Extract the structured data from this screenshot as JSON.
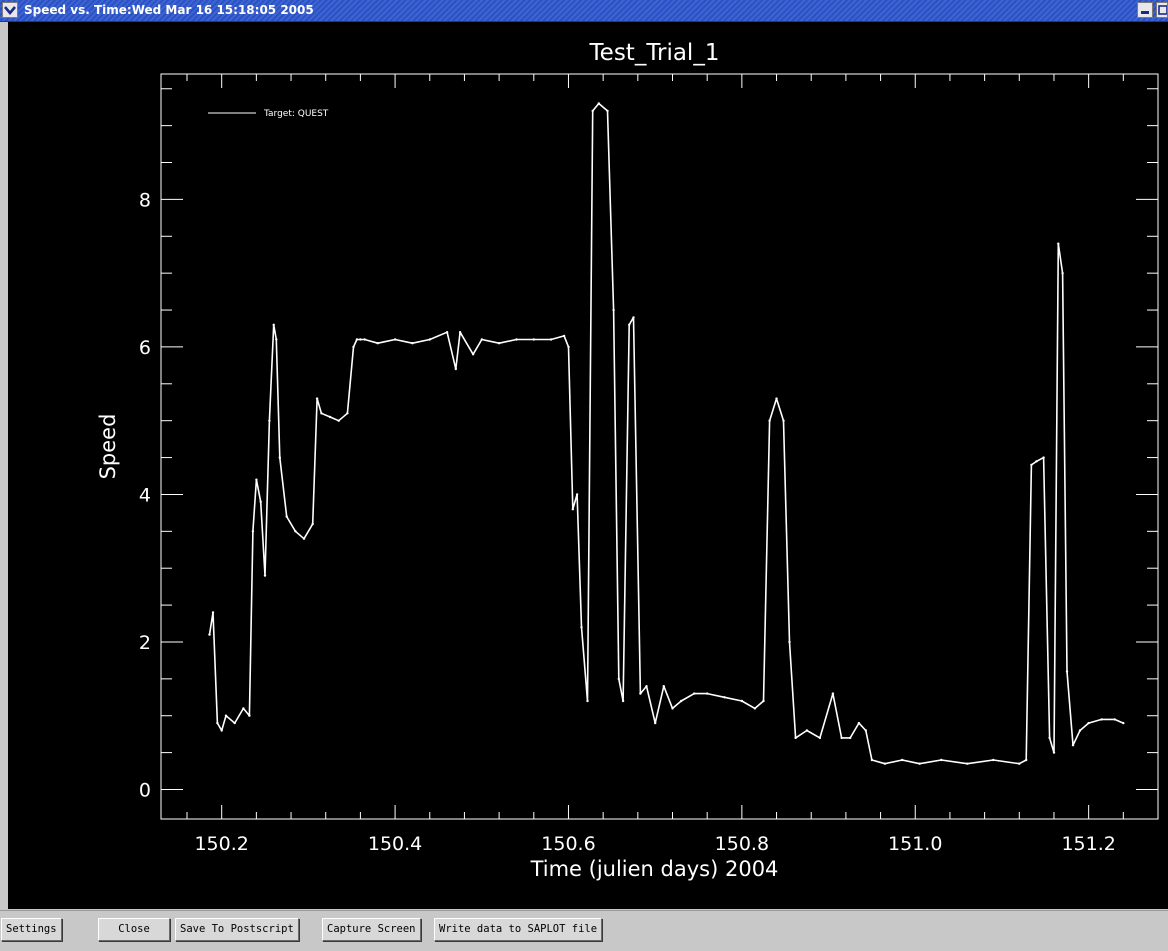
{
  "window": {
    "title": "Speed vs. Time:Wed Mar 16 15:18:05 2005",
    "menu_icon": "chevron-down-icon",
    "minimize_icon": "minimize-icon",
    "maximize_icon": "maximize-icon"
  },
  "toolbar": {
    "buttons": [
      {
        "label": "Settings"
      },
      {
        "label": "Close"
      },
      {
        "label": "Save To Postscript"
      },
      {
        "label": "Capture Screen"
      },
      {
        "label": "Write data to SAPLOT file"
      }
    ]
  },
  "colors": {
    "plot_bg": "#000000",
    "plot_fg": "#ffffff",
    "titlebar": "#2a52c8",
    "toolbar_bg": "#c8c8c8"
  },
  "chart_data": {
    "type": "line",
    "title": "Test_Trial_1",
    "xlabel": "Time (julien days) 2004",
    "ylabel": "Speed",
    "xlim": [
      150.13,
      151.28
    ],
    "ylim": [
      -0.4,
      9.7
    ],
    "xticks": [
      150.2,
      150.4,
      150.6,
      150.8,
      151.0,
      151.2
    ],
    "xtick_labels": [
      "150.2",
      "150.4",
      "150.6",
      "150.8",
      "151.0",
      "151.2"
    ],
    "yticks": [
      0,
      2,
      4,
      6,
      8
    ],
    "ytick_labels": [
      "0",
      "2",
      "4",
      "6",
      "8"
    ],
    "grid": false,
    "legend": "top-left",
    "series": [
      {
        "name": "Target: QUEST",
        "x": [
          150.186,
          150.19,
          150.195,
          150.2,
          150.205,
          150.215,
          150.225,
          150.232,
          150.236,
          150.24,
          150.245,
          150.25,
          150.255,
          150.26,
          150.263,
          150.267,
          150.275,
          150.285,
          150.295,
          150.305,
          150.31,
          150.315,
          150.325,
          150.335,
          150.345,
          150.352,
          150.356,
          150.36,
          150.365,
          150.38,
          150.4,
          150.42,
          150.44,
          150.46,
          150.47,
          150.475,
          150.49,
          150.5,
          150.52,
          150.54,
          150.56,
          150.58,
          150.595,
          150.6,
          150.605,
          150.61,
          150.615,
          150.622,
          150.628,
          150.635,
          150.645,
          150.652,
          150.658,
          150.663,
          150.67,
          150.675,
          150.683,
          150.69,
          150.7,
          150.71,
          150.72,
          150.73,
          150.745,
          150.76,
          150.78,
          150.8,
          150.815,
          150.825,
          150.832,
          150.84,
          150.848,
          150.855,
          150.862,
          150.875,
          150.89,
          150.905,
          150.915,
          150.925,
          150.935,
          150.943,
          150.95,
          150.965,
          150.985,
          151.005,
          151.03,
          151.06,
          151.09,
          151.12,
          151.128,
          151.134,
          151.14,
          151.148,
          151.155,
          151.16,
          151.165,
          151.17,
          151.175,
          151.182,
          151.19,
          151.2,
          151.215,
          151.23,
          151.24
        ],
        "y": [
          2.1,
          2.4,
          0.9,
          0.8,
          1.0,
          0.9,
          1.1,
          1.0,
          3.5,
          4.2,
          3.9,
          2.9,
          5.0,
          6.3,
          6.1,
          4.5,
          3.7,
          3.5,
          3.4,
          3.6,
          5.3,
          5.1,
          5.05,
          5.0,
          5.1,
          6.0,
          6.1,
          6.1,
          6.1,
          6.05,
          6.1,
          6.05,
          6.1,
          6.2,
          5.7,
          6.2,
          5.9,
          6.1,
          6.05,
          6.1,
          6.1,
          6.1,
          6.15,
          6.0,
          3.8,
          4.0,
          2.2,
          1.2,
          9.2,
          9.3,
          9.2,
          6.5,
          1.5,
          1.2,
          6.3,
          6.4,
          1.3,
          1.4,
          0.9,
          1.4,
          1.1,
          1.2,
          1.3,
          1.3,
          1.25,
          1.2,
          1.1,
          1.2,
          5.0,
          5.3,
          5.0,
          2.0,
          0.7,
          0.8,
          0.7,
          1.3,
          0.7,
          0.7,
          0.9,
          0.8,
          0.4,
          0.35,
          0.4,
          0.35,
          0.4,
          0.35,
          0.4,
          0.35,
          0.4,
          4.4,
          4.45,
          4.5,
          0.7,
          0.5,
          7.4,
          7.0,
          1.6,
          0.6,
          0.8,
          0.9,
          0.95,
          0.95,
          0.9
        ]
      }
    ]
  }
}
